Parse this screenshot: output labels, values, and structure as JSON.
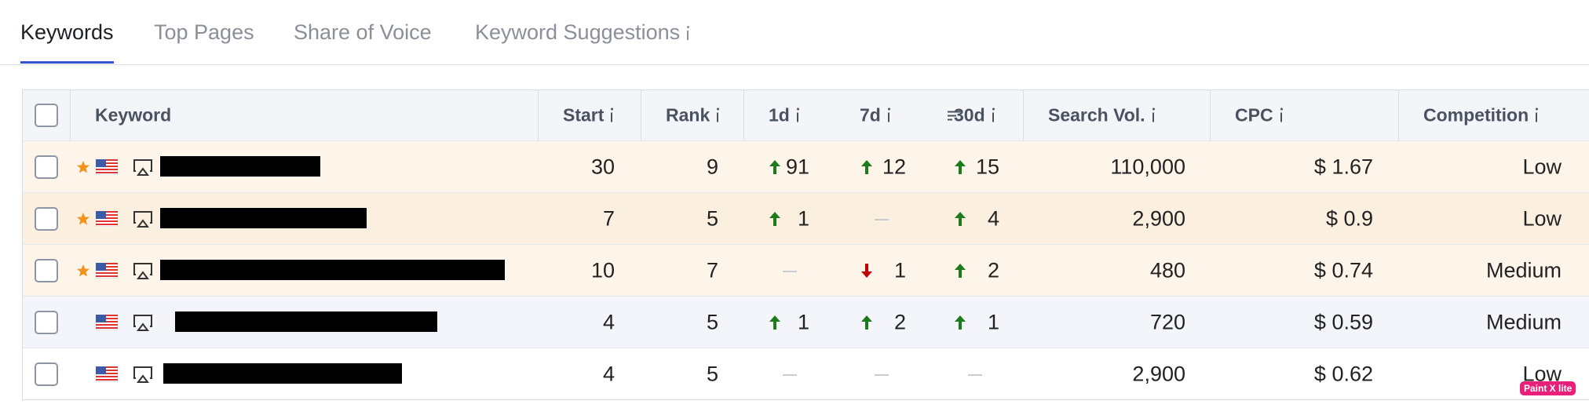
{
  "tabs": [
    "Keywords",
    "Top Pages",
    "Share of Voice",
    "Keyword Suggestions"
  ],
  "active_tab": 0,
  "table": {
    "headers": [
      "Keyword",
      "Start",
      "Rank",
      "1d",
      "7d",
      "30d",
      "Search Vol.",
      "CPC",
      "Competition"
    ],
    "rows": [
      {
        "starred": true,
        "start": 30,
        "rank": 9,
        "d1": {
          "dir": "up",
          "value": 91
        },
        "d7": {
          "dir": "up",
          "value": 12
        },
        "d30": {
          "dir": "up",
          "value": 15
        },
        "volume": "110,000",
        "cpc": "$ 1.67",
        "competition": "Low"
      },
      {
        "starred": true,
        "start": 7,
        "rank": 5,
        "d1": {
          "dir": "up",
          "value": 1
        },
        "d7": null,
        "d30": {
          "dir": "up",
          "value": 4
        },
        "volume": "2,900",
        "cpc": "$ 0.9",
        "competition": "Low"
      },
      {
        "starred": true,
        "start": 10,
        "rank": 7,
        "d1": null,
        "d7": {
          "dir": "down",
          "value": 1
        },
        "d30": {
          "dir": "up",
          "value": 2
        },
        "volume": "480",
        "cpc": "$ 0.74",
        "competition": "Medium"
      },
      {
        "starred": false,
        "start": 4,
        "rank": 5,
        "d1": {
          "dir": "up",
          "value": 1
        },
        "d7": {
          "dir": "up",
          "value": 2
        },
        "d30": {
          "dir": "up",
          "value": 1
        },
        "volume": "720",
        "cpc": "$ 0.59",
        "competition": "Medium"
      },
      {
        "starred": false,
        "start": 4,
        "rank": 5,
        "d1": null,
        "d7": null,
        "d30": null,
        "volume": "2,900",
        "cpc": "$ 0.62",
        "competition": "Low"
      }
    ]
  },
  "watermark": "Paint X lite"
}
